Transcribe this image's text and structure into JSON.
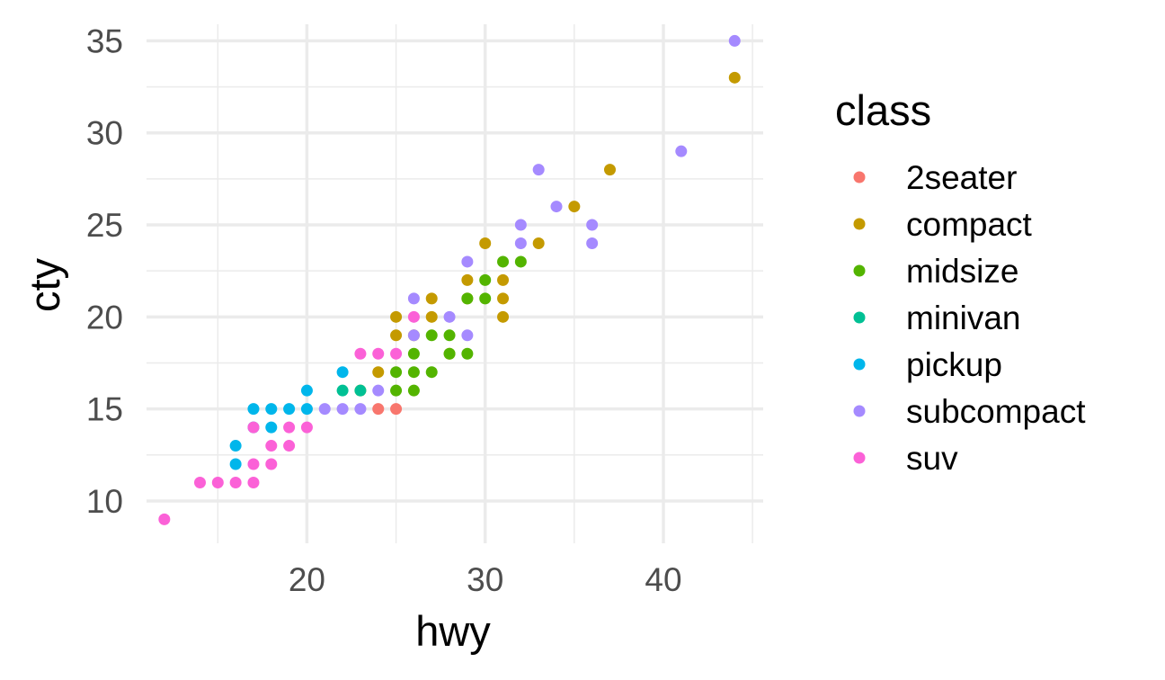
{
  "chart_data": {
    "type": "scatter",
    "xlabel": "hwy",
    "ylabel": "cty",
    "xlim": [
      11,
      45.6
    ],
    "ylim": [
      7.7,
      35.9
    ],
    "xticks": [
      20,
      30,
      40
    ],
    "xminor": [
      15,
      25,
      35,
      45
    ],
    "yticks": [
      10,
      15,
      20,
      25,
      30,
      35
    ],
    "yminor": [
      12.5,
      17.5,
      22.5,
      27.5,
      32.5
    ],
    "grid": true,
    "legend": {
      "title": "class",
      "position": "right",
      "entries": [
        "2seater",
        "compact",
        "midsize",
        "minivan",
        "pickup",
        "subcompact",
        "suv"
      ]
    },
    "colors": {
      "2seater": "#F8766D",
      "compact": "#C49A00",
      "midsize": "#53B400",
      "minivan": "#00C094",
      "pickup": "#00B6EB",
      "subcompact": "#A58AFF",
      "suv": "#FB61D7"
    },
    "series": [
      {
        "name": "2seater",
        "x": [
          24,
          25
        ],
        "y": [
          15,
          15
        ]
      },
      {
        "name": "compact",
        "x": [
          23,
          24,
          25,
          25,
          26,
          27,
          27,
          28,
          29,
          29,
          30,
          31,
          31,
          31,
          33,
          35,
          37,
          44
        ],
        "y": [
          16,
          17,
          19,
          20,
          19,
          20,
          21,
          18,
          21,
          22,
          24,
          20,
          21,
          22,
          24,
          26,
          28,
          33
        ]
      },
      {
        "name": "midsize",
        "x": [
          25,
          25,
          26,
          26,
          26,
          27,
          27,
          28,
          28,
          29,
          29,
          30,
          30,
          31,
          32
        ],
        "y": [
          16,
          17,
          16,
          17,
          18,
          17,
          19,
          18,
          19,
          18,
          21,
          21,
          22,
          23,
          23
        ]
      },
      {
        "name": "minivan",
        "x": [
          22,
          23
        ],
        "y": [
          16,
          16
        ]
      },
      {
        "name": "pickup",
        "x": [
          16,
          16,
          17,
          17,
          18,
          18,
          19,
          20,
          20,
          22
        ],
        "y": [
          12,
          13,
          14,
          15,
          14,
          15,
          15,
          15,
          16,
          17
        ]
      },
      {
        "name": "subcompact",
        "x": [
          21,
          22,
          23,
          24,
          26,
          26,
          28,
          29,
          29,
          32,
          32,
          33,
          34,
          36,
          36,
          41,
          44
        ],
        "y": [
          15,
          15,
          15,
          16,
          19,
          21,
          20,
          19,
          23,
          24,
          25,
          28,
          26,
          24,
          25,
          29,
          35
        ]
      },
      {
        "name": "suv",
        "x": [
          12,
          14,
          15,
          16,
          17,
          17,
          17,
          18,
          18,
          19,
          19,
          20,
          23,
          24,
          25,
          26
        ],
        "y": [
          9,
          11,
          11,
          11,
          11,
          12,
          14,
          12,
          13,
          13,
          14,
          14,
          18,
          18,
          18,
          20
        ]
      }
    ]
  }
}
